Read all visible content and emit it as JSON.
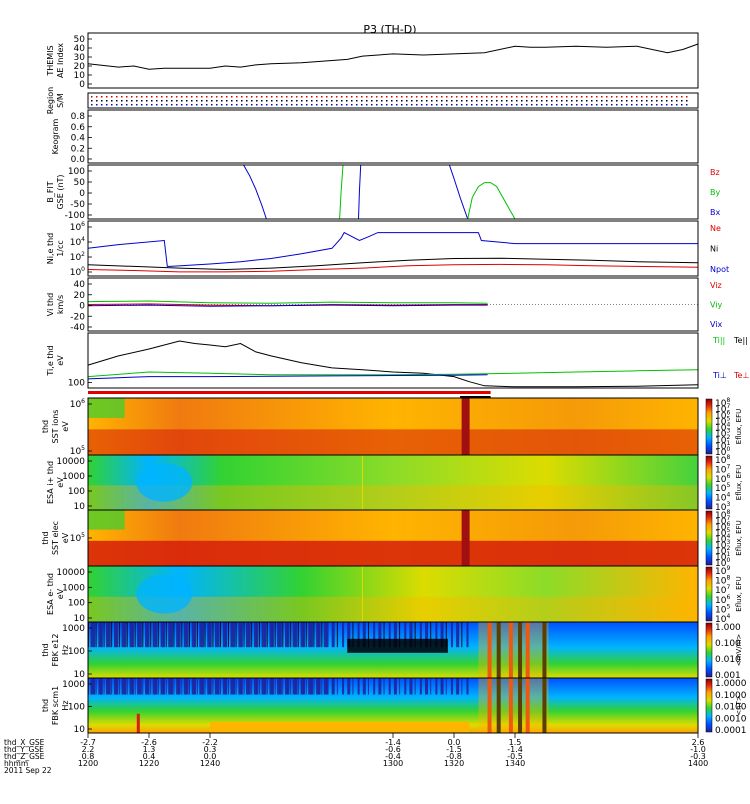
{
  "title": "P3 (TH-D)",
  "colors": {
    "black": "#000000",
    "red": "#e00000",
    "green": "#00c000",
    "blue": "#0000d0",
    "spec_hot": "#d61e0a",
    "spec_warm": "#ffb400",
    "spec_mid": "#32d232",
    "spec_cool": "#00b4ff"
  },
  "chart_data": [
    {
      "id": "ae",
      "type": "line",
      "ylabel": [
        "THEMIS",
        "AE Index"
      ],
      "ylim": [
        0,
        50
      ],
      "yticks": [
        "50",
        "40",
        "30",
        "20",
        "10",
        "0"
      ],
      "series": [
        {
          "color": "black",
          "x": [
            1200,
            1210,
            1215,
            1220,
            1225,
            1230,
            1240,
            1245,
            1250,
            1255,
            1260,
            1270,
            1280,
            1285,
            1290,
            1300,
            1310,
            1320,
            1330,
            1340,
            1345,
            1350,
            1360,
            1370,
            1380,
            1390,
            1395,
            1400
          ],
          "values": [
            22,
            19,
            20,
            17,
            18,
            18,
            18,
            20,
            19,
            21,
            22,
            23,
            25,
            26,
            29,
            31,
            30,
            31,
            32,
            38,
            37,
            37,
            38,
            37,
            38,
            32,
            35,
            40
          ]
        }
      ]
    },
    {
      "id": "region",
      "type": "scatter",
      "ylabel": [
        "Region",
        "S/M"
      ],
      "yticks": [],
      "note_rows": [
        "red",
        "black",
        "blue"
      ]
    },
    {
      "id": "keogram",
      "type": "line",
      "ylabel": [
        "Keogram"
      ],
      "ylim": [
        0,
        1
      ],
      "yticks": [
        "0.8",
        "0.6",
        "0.4",
        "0.2",
        "0.0"
      ],
      "series": []
    },
    {
      "id": "bfgm",
      "type": "line",
      "ylabel": [
        "B_FIT",
        "GSE (nT)"
      ],
      "ylim": [
        -100,
        100
      ],
      "yticks": [
        "100",
        "50",
        "0",
        "-50",
        "-100"
      ],
      "legend": [
        {
          "text": "Bz",
          "color": "red"
        },
        {
          "text": "By",
          "color": "green"
        },
        {
          "text": "Bx",
          "color": "blue"
        }
      ],
      "series": [
        {
          "color": "blue",
          "x": [
            1251,
            1253,
            1255,
            1257,
            1258.5
          ],
          "values": [
            100,
            60,
            10,
            -50,
            -100
          ]
        },
        {
          "color": "green",
          "x": [
            1282.5,
            1283,
            1283.6
          ],
          "values": [
            -100,
            0,
            100
          ]
        },
        {
          "color": "blue",
          "x": [
            1288.7,
            1289,
            1289.4
          ],
          "values": [
            -100,
            0,
            100
          ]
        },
        {
          "color": "blue",
          "x": [
            1318.5,
            1320,
            1322,
            1324.5
          ],
          "values": [
            100,
            50,
            -20,
            -100
          ]
        },
        {
          "color": "green",
          "x": [
            1324.5,
            1326,
            1328,
            1330,
            1332,
            1334,
            1336,
            1338,
            1340
          ],
          "values": [
            -100,
            -20,
            20,
            35,
            35,
            20,
            -20,
            -60,
            -100
          ]
        }
      ]
    },
    {
      "id": "density",
      "type": "line",
      "ylabel": [
        "Ni,e thd",
        "1/cc"
      ],
      "yscale": "log",
      "ylim": [
        0.3,
        3000000
      ],
      "yticks": [
        "10^6",
        "10^4",
        "10^2",
        "10^0"
      ],
      "legend": [
        {
          "text": "Ne",
          "color": "red"
        },
        {
          "text": "Ni",
          "color": "black"
        },
        {
          "text": "Npot",
          "color": "blue"
        }
      ],
      "series": [
        {
          "color": "blue",
          "x": [
            1200,
            1210,
            1225,
            1226,
            1227,
            1240,
            1250,
            1260,
            1270,
            1280,
            1283,
            1284,
            1289,
            1292,
            1295,
            1300,
            1320,
            1328,
            1329,
            1340,
            1360,
            1380,
            1400
          ],
          "values": [
            1000,
            3000,
            10000,
            5,
            5,
            10,
            20,
            50,
            200,
            1000,
            20000,
            100000,
            10000,
            30000,
            100000,
            100000,
            100000,
            100000,
            10000,
            4000,
            4000,
            4000,
            4000
          ]
        },
        {
          "color": "black",
          "x": [
            1200,
            1215,
            1230,
            1245,
            1260,
            1275,
            1290,
            1305,
            1320,
            1335,
            1350,
            1365,
            1380,
            1400
          ],
          "values": [
            8,
            5,
            3,
            2,
            3,
            6,
            15,
            30,
            50,
            55,
            40,
            30,
            20,
            15
          ]
        },
        {
          "color": "red",
          "x": [
            1200,
            1215,
            1230,
            1245,
            1260,
            1275,
            1290,
            1305,
            1320,
            1335,
            1350,
            1365,
            1380,
            1400
          ],
          "values": [
            2,
            1.5,
            1,
            1,
            1.2,
            2,
            3,
            6,
            8,
            9,
            8,
            6,
            5,
            4
          ]
        }
      ]
    },
    {
      "id": "velocity",
      "type": "line",
      "ylabel": [
        "Vi thd",
        "km/s"
      ],
      "ylim": [
        -45,
        45
      ],
      "yticks": [
        "40",
        "20",
        "0",
        "-20",
        "-40"
      ],
      "legend": [
        {
          "text": "Viz",
          "color": "red"
        },
        {
          "text": "Viy",
          "color": "green"
        },
        {
          "text": "Vix",
          "color": "blue"
        }
      ],
      "series": [
        {
          "color": "green",
          "x": [
            1200,
            1220,
            1240,
            1260,
            1280,
            1300,
            1320,
            1331
          ],
          "values": [
            5,
            6,
            3,
            2,
            4,
            3,
            3,
            2
          ]
        },
        {
          "color": "red",
          "x": [
            1200,
            1220,
            1240,
            1260,
            1280,
            1300,
            1320,
            1331
          ],
          "values": [
            0,
            1,
            -1,
            -2,
            0,
            -1,
            0,
            0
          ]
        },
        {
          "color": "blue",
          "x": [
            1200,
            1220,
            1240,
            1260,
            1280,
            1300,
            1320,
            1331
          ],
          "values": [
            -2,
            -1,
            -3,
            -2,
            -1,
            -2,
            -1,
            -1
          ]
        }
      ]
    },
    {
      "id": "temperature",
      "type": "line",
      "ylabel": [
        "Ti,e thd",
        "eV"
      ],
      "yscale": "log",
      "ylim": [
        80,
        20000
      ],
      "yticks": [
        "100"
      ],
      "legend": [
        {
          "text": "Ti||",
          "color": "green"
        },
        {
          "text": "Te||",
          "color": "black"
        },
        {
          "text": "Ti⊥",
          "color": "blue"
        },
        {
          "text": "Te⊥",
          "color": "red"
        }
      ],
      "series": [
        {
          "color": "black",
          "x": [
            1200,
            1210,
            1220,
            1225,
            1230,
            1235,
            1240,
            1245,
            1250,
            1255,
            1260,
            1270,
            1280,
            1290,
            1300,
            1310,
            1320,
            1325,
            1330,
            1340,
            1360,
            1380,
            1400
          ],
          "values": [
            800,
            2000,
            4000,
            6000,
            9000,
            7000,
            6000,
            5000,
            7000,
            3000,
            2000,
            1000,
            600,
            500,
            400,
            350,
            250,
            150,
            100,
            90,
            90,
            95,
            110
          ]
        },
        {
          "color": "green",
          "x": [
            1200,
            1220,
            1240,
            1260,
            1280,
            1300,
            1320,
            1340,
            1360,
            1380,
            1400
          ],
          "values": [
            250,
            400,
            350,
            300,
            300,
            300,
            320,
            350,
            400,
            450,
            500
          ]
        },
        {
          "color": "blue",
          "x": [
            1200,
            1220,
            1240,
            1260,
            1280,
            1300,
            1320,
            1331
          ],
          "values": [
            200,
            250,
            250,
            260,
            270,
            280,
            290,
            300
          ]
        }
      ]
    },
    {
      "id": "sst_ions",
      "type": "heatmap",
      "ylabel": [
        "thd",
        "SST ions",
        "eV"
      ],
      "yticks": [
        "10^6",
        "10^5"
      ],
      "colorbar": {
        "label": "Eflux, EFU",
        "ticks": [
          "10^8",
          "10^7",
          "10^6",
          "10^5",
          "10^4",
          "10^3",
          "10^2",
          "10^1",
          "10^0"
        ]
      }
    },
    {
      "id": "esa_ions",
      "type": "heatmap",
      "ylabel": [
        "ESA i+ thd",
        "eV"
      ],
      "yticks": [
        "10000",
        "1000",
        "100",
        "10"
      ],
      "colorbar": {
        "label": "Eflux, EFU",
        "ticks": [
          "10^8",
          "10^7",
          "10^6",
          "10^5",
          "10^4",
          "10^3"
        ]
      }
    },
    {
      "id": "sst_elec",
      "type": "heatmap",
      "ylabel": [
        "thd",
        "SST elec",
        "eV"
      ],
      "yticks": [
        "10^5"
      ],
      "colorbar": {
        "label": "Eflux, EFU",
        "ticks": [
          "10^8",
          "10^7",
          "10^6",
          "10^5",
          "10^4",
          "10^3",
          "10^2",
          "10^1",
          "10^0"
        ]
      }
    },
    {
      "id": "esa_elec",
      "type": "heatmap",
      "ylabel": [
        "ESA e- thd",
        "eV"
      ],
      "yticks": [
        "10000",
        "1000",
        "100",
        "10"
      ],
      "colorbar": {
        "label": "Eflux, EFU",
        "ticks": [
          "10^9",
          "10^8",
          "10^7",
          "10^6",
          "10^5",
          "10^4"
        ]
      }
    },
    {
      "id": "fbk_e",
      "type": "heatmap",
      "ylabel": [
        "thd",
        "FBK e12",
        "Hz"
      ],
      "yticks": [
        "1000",
        "100",
        "10"
      ],
      "colorbar": {
        "label": "<mV/m>",
        "ticks": [
          "1.000",
          "0.100",
          "0.010",
          "0.001"
        ]
      }
    },
    {
      "id": "fbk_scm",
      "type": "heatmap",
      "ylabel": [
        "thd",
        "FBK scm1",
        "Hz"
      ],
      "yticks": [
        "1000",
        "100",
        "10"
      ],
      "colorbar": {
        "label": "<nT>",
        "ticks": [
          "1.0000",
          "0.1000",
          "0.0100",
          "0.0010",
          "0.0001"
        ]
      }
    }
  ],
  "xaxis": {
    "row_labels": [
      "thd_X_GSE",
      "thd_Y_GSE",
      "thd_Z_GSE",
      "hhmm",
      "2011 Sep 22"
    ],
    "columns": [
      {
        "x": 1200,
        "vals": [
          "-2.7",
          "2.2",
          "0.8",
          "1200"
        ]
      },
      {
        "x": 1220,
        "vals": [
          "-2.6",
          "1.3",
          "0.4",
          "1220"
        ]
      },
      {
        "x": 1240,
        "vals": [
          "-2.2",
          "0.3",
          "0.0",
          "1240"
        ]
      },
      {
        "x": 1300,
        "vals": [
          "-1.4",
          "-0.6",
          "-0.4",
          "1300"
        ]
      },
      {
        "x": 1320,
        "vals": [
          "0.0",
          "-1.5",
          "-0.8",
          "1320"
        ]
      },
      {
        "x": 1340,
        "vals": [
          "1.5",
          "-1.4",
          "-0.5",
          "1340"
        ]
      },
      {
        "x": 1400,
        "vals": [
          "2.6",
          "-1.0",
          "-0.3",
          "1400"
        ]
      }
    ]
  }
}
